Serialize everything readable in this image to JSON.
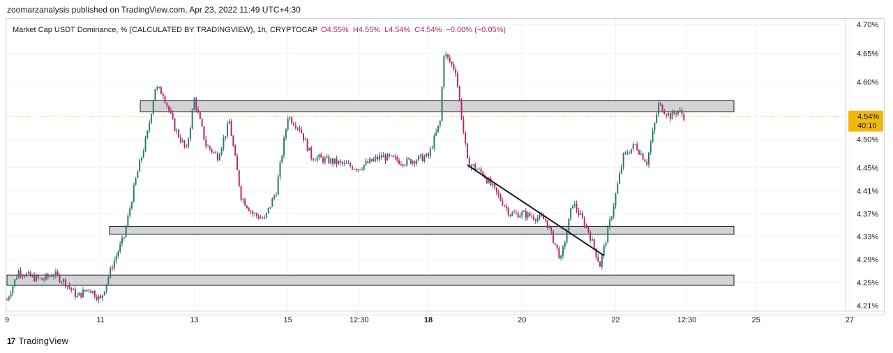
{
  "header": {
    "published": "zoomarzanalysis published on TradingView.com, Apr 23, 2022 11:49 UTC+4:30"
  },
  "legend": {
    "symbol": "Market Cap USDT Dominance, % (CALCULATED BY TRADINGVIEW), 1h, CRYPTOCAP",
    "open": "O4.55%",
    "high": "H4.55%",
    "low": "L4.54%",
    "close": "C4.54%",
    "change": "−0.00% (−0.05%)"
  },
  "footer": {
    "logo": "17",
    "brand": "TradingView"
  },
  "colors": {
    "up": "#26786b",
    "down": "#b5246b",
    "zone_fill": "#d3d3d3",
    "price_tag": "#f2b90d",
    "grid": "#f0f3fa"
  },
  "chart_data": {
    "type": "candlestick",
    "timeframe": "1h",
    "ylim": [
      4.2,
      4.71
    ],
    "y_ticks": [
      "4.70%",
      "4.65%",
      "4.60%",
      "4.50%",
      "4.45%",
      "4.41%",
      "4.37%",
      "4.33%",
      "4.29%",
      "4.25%",
      "4.21%"
    ],
    "x_ticks": [
      "9",
      "11",
      "13",
      "15",
      "12:30",
      "18",
      "20",
      "22",
      "12:30",
      "25",
      "27"
    ],
    "last_price": {
      "value": 4.54,
      "label": "4.54%",
      "countdown": "40:10"
    },
    "zones": [
      {
        "top": 4.567,
        "bottom": 4.548
      },
      {
        "top": 4.348,
        "bottom": 4.334
      },
      {
        "top": 4.263,
        "bottom": 4.245
      }
    ],
    "trendline": {
      "from": [
        "Apr 18 20:00",
        4.455
      ],
      "to": [
        "Apr 21 18:00",
        4.297
      ]
    },
    "close_path": [
      [
        "Apr 9 00:00",
        4.22
      ],
      [
        "Apr 9 06:00",
        4.27
      ],
      [
        "Apr 9 12:00",
        4.26
      ],
      [
        "Apr 9 18:00",
        4.255
      ],
      [
        "Apr 10 00:00",
        4.265
      ],
      [
        "Apr 10 06:00",
        4.25
      ],
      [
        "Apr 10 12:00",
        4.225
      ],
      [
        "Apr 10 18:00",
        4.24
      ],
      [
        "Apr 11 00:00",
        4.22
      ],
      [
        "Apr 11 06:00",
        4.28
      ],
      [
        "Apr 11 12:00",
        4.33
      ],
      [
        "Apr 11 18:00",
        4.43
      ],
      [
        "Apr 12 00:00",
        4.51
      ],
      [
        "Apr 12 04:00",
        4.59
      ],
      [
        "Apr 12 08:00",
        4.58
      ],
      [
        "Apr 12 14:00",
        4.52
      ],
      [
        "Apr 12 20:00",
        4.48
      ],
      [
        "Apr 13 00:00",
        4.57
      ],
      [
        "Apr 13 06:00",
        4.49
      ],
      [
        "Apr 13 12:00",
        4.47
      ],
      [
        "Apr 13 18:00",
        4.53
      ],
      [
        "Apr 14 00:00",
        4.4
      ],
      [
        "Apr 14 06:00",
        4.37
      ],
      [
        "Apr 14 12:00",
        4.36
      ],
      [
        "Apr 14 18:00",
        4.41
      ],
      [
        "Apr 15 00:00",
        4.54
      ],
      [
        "Apr 15 06:00",
        4.52
      ],
      [
        "Apr 15 12:00",
        4.47
      ],
      [
        "Apr 16 00:00",
        4.46
      ],
      [
        "Apr 16 12:00",
        4.45
      ],
      [
        "Apr 17 00:00",
        4.47
      ],
      [
        "Apr 17 12:00",
        4.46
      ],
      [
        "Apr 18 00:00",
        4.47
      ],
      [
        "Apr 18 06:00",
        4.53
      ],
      [
        "Apr 18 08:00",
        4.65
      ],
      [
        "Apr 18 14:00",
        4.62
      ],
      [
        "Apr 18 20:00",
        4.46
      ],
      [
        "Apr 19 04:00",
        4.44
      ],
      [
        "Apr 19 10:00",
        4.41
      ],
      [
        "Apr 19 18:00",
        4.37
      ],
      [
        "Apr 20 00:00",
        4.37
      ],
      [
        "Apr 20 12:00",
        4.36
      ],
      [
        "Apr 20 20:00",
        4.29
      ],
      [
        "Apr 21 02:00",
        4.39
      ],
      [
        "Apr 21 10:00",
        4.34
      ],
      [
        "Apr 21 16:00",
        4.28
      ],
      [
        "Apr 21 22:00",
        4.37
      ],
      [
        "Apr 22 04:00",
        4.47
      ],
      [
        "Apr 22 10:00",
        4.49
      ],
      [
        "Apr 22 16:00",
        4.46
      ],
      [
        "Apr 22 22:00",
        4.56
      ],
      [
        "Apr 23 04:00",
        4.54
      ],
      [
        "Apr 23 08:00",
        4.55
      ],
      [
        "Apr 23 11:00",
        4.54
      ]
    ]
  }
}
